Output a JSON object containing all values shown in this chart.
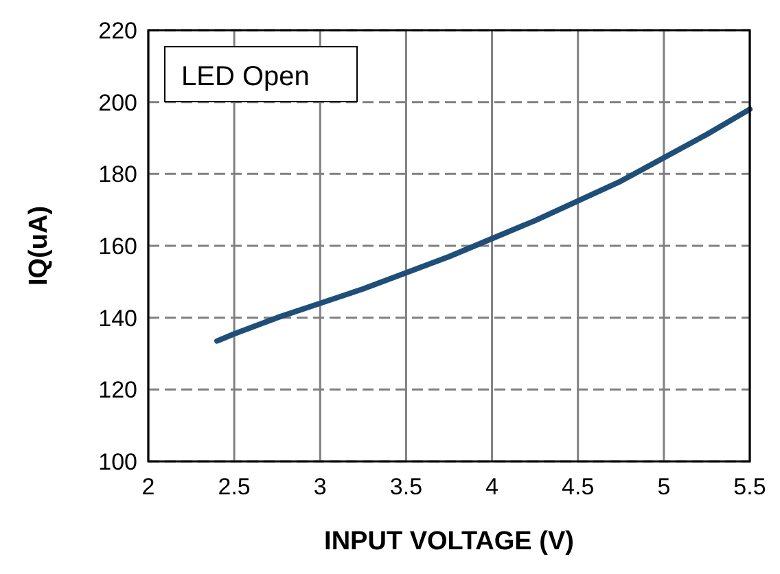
{
  "chart_data": {
    "type": "line",
    "xlabel": "INPUT VOLTAGE (V)",
    "ylabel": "IQ(uA)",
    "annotations": [
      "LED Open"
    ],
    "xlim": [
      2,
      5.5
    ],
    "xticks": [
      2,
      2.5,
      3,
      3.5,
      4,
      4.5,
      5,
      5.5
    ],
    "ylim": [
      100,
      220
    ],
    "yticks": [
      100,
      120,
      140,
      160,
      180,
      200,
      220
    ],
    "grid": true,
    "series": [
      {
        "color": "#1f4e79",
        "x": [
          2.4,
          2.5,
          2.75,
          3,
          3.25,
          3.5,
          3.75,
          4,
          4.25,
          4.5,
          4.75,
          5,
          5.25,
          5.5
        ],
        "values": [
          133.5,
          135.5,
          140,
          144,
          148,
          152.5,
          157,
          162,
          167,
          172.5,
          178,
          184.5,
          191,
          198
        ]
      }
    ]
  }
}
